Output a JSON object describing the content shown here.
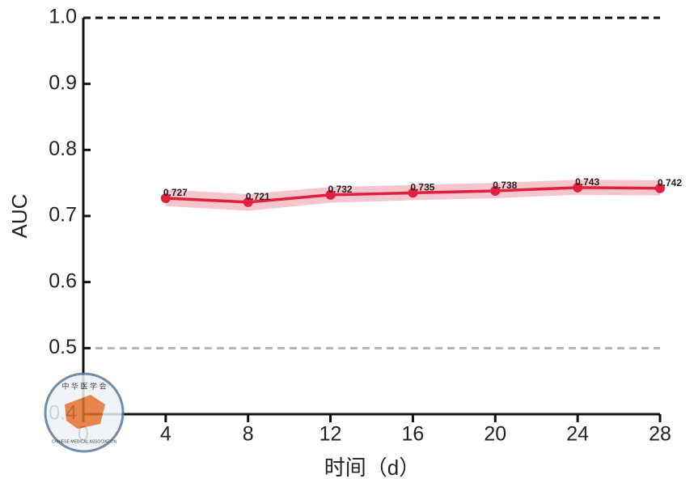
{
  "chart_data": {
    "type": "line",
    "x_label": "时间（d）",
    "y_label": "AUC",
    "x": [
      4,
      8,
      12,
      16,
      20,
      24,
      28
    ],
    "series": [
      {
        "name": "AUC",
        "color": "#e0203c",
        "band_color": "#f1b3bd",
        "values": [
          0.727,
          0.721,
          0.732,
          0.735,
          0.738,
          0.743,
          0.742
        ],
        "lower": [
          0.715,
          0.708,
          0.72,
          0.724,
          0.727,
          0.732,
          0.731
        ],
        "upper": [
          0.74,
          0.733,
          0.744,
          0.747,
          0.75,
          0.755,
          0.754
        ]
      }
    ],
    "xlim": [
      0,
      28
    ],
    "xticks": [
      0,
      4,
      8,
      12,
      16,
      20,
      24,
      28
    ],
    "ylim": [
      0.4,
      1
    ],
    "yticks": [
      0.4,
      0.5,
      0.6,
      0.7,
      0.8,
      0.9,
      {
        "value": 1,
        "label": "1.0"
      }
    ],
    "reference_lines": [
      {
        "value": 1,
        "color": "#111111"
      },
      {
        "value": 0.5,
        "color": "#b5b5b5"
      }
    ],
    "watermark": {
      "top": "中 华 医 学 会",
      "bottom": "CHINESE MEDICAL ASSOCIATION"
    }
  }
}
